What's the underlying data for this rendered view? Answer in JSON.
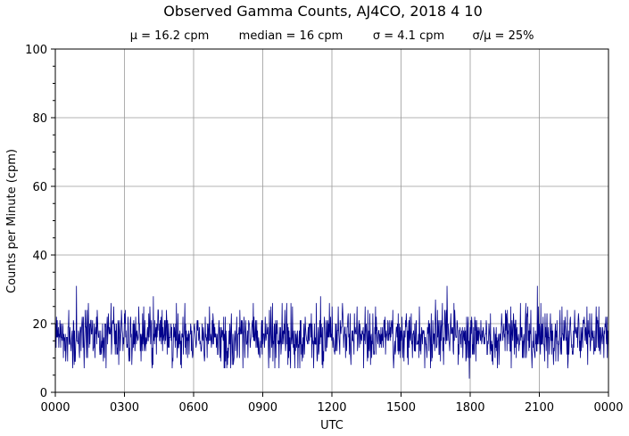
{
  "chart_data": {
    "type": "line",
    "title": "Observed Gamma Counts, AJ4CO, 2018 4 10",
    "subtitle": {
      "mean": "μ = 16.2 cpm",
      "median": "median = 16 cpm",
      "sigma": "σ = 4.1 cpm",
      "ratio": "σ/μ = 25%"
    },
    "xlabel": "UTC",
    "ylabel": "Counts per Minute (cpm)",
    "xlim": [
      0,
      1440
    ],
    "ylim": [
      0,
      100
    ],
    "x_ticks": [
      {
        "value": 0,
        "label": "0000"
      },
      {
        "value": 180,
        "label": "0300"
      },
      {
        "value": 360,
        "label": "0600"
      },
      {
        "value": 540,
        "label": "0900"
      },
      {
        "value": 720,
        "label": "1200"
      },
      {
        "value": 900,
        "label": "1500"
      },
      {
        "value": 1080,
        "label": "1800"
      },
      {
        "value": 1260,
        "label": "2100"
      },
      {
        "value": 1440,
        "label": "0000"
      }
    ],
    "y_ticks": [
      {
        "value": 0,
        "label": "0"
      },
      {
        "value": 20,
        "label": "20"
      },
      {
        "value": 40,
        "label": "40"
      },
      {
        "value": 60,
        "label": "60"
      },
      {
        "value": 80,
        "label": "80"
      },
      {
        "value": 100,
        "label": "100"
      }
    ],
    "y_minor_step": 5,
    "grid": true,
    "colors": {
      "series": "#00008b",
      "grid": "#9a9a9a"
    },
    "series": [
      {
        "mean": 16.2,
        "sigma": 4.1,
        "count": 1440,
        "notable_points": [
          {
            "x": 55,
            "y": 31
          },
          {
            "x": 255,
            "y": 28
          },
          {
            "x": 565,
            "y": 26
          },
          {
            "x": 690,
            "y": 28
          },
          {
            "x": 1020,
            "y": 31
          },
          {
            "x": 1078,
            "y": 4
          },
          {
            "x": 1255,
            "y": 31
          },
          {
            "x": 990,
            "y": 27
          }
        ]
      }
    ]
  }
}
